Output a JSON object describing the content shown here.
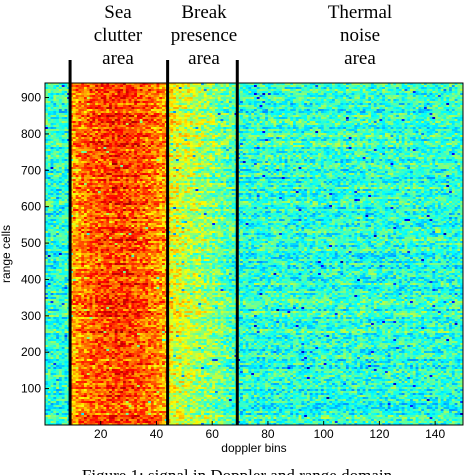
{
  "chart_data": {
    "type": "heatmap",
    "title": "",
    "xlabel": "doppler bins",
    "ylabel": "range cells",
    "xlim": [
      0,
      150
    ],
    "ylim": [
      0,
      940
    ],
    "xticks": [
      20,
      40,
      60,
      80,
      100,
      120,
      140
    ],
    "yticks": [
      100,
      200,
      300,
      400,
      500,
      600,
      700,
      800,
      900
    ],
    "colormap": "jet",
    "boundaries": [
      9,
      44,
      69
    ],
    "regions": [
      {
        "label": [
          "Sea",
          "clutter",
          "area"
        ],
        "x_range": [
          9,
          44
        ],
        "level": "high"
      },
      {
        "label": [
          "Break",
          "presence",
          "area"
        ],
        "x_range": [
          44,
          69
        ],
        "level": "medium"
      },
      {
        "label": [
          "Thermal",
          "noise",
          "area"
        ],
        "x_range": [
          69,
          150
        ],
        "level": "low"
      }
    ],
    "caption": "Figure 1: signal in Doppler and range domain"
  },
  "colors": {
    "background": "#ffffff",
    "noise_cyan": "#40c8b0",
    "clutter_orange": "#f07020",
    "boundary_line": "#000000"
  }
}
